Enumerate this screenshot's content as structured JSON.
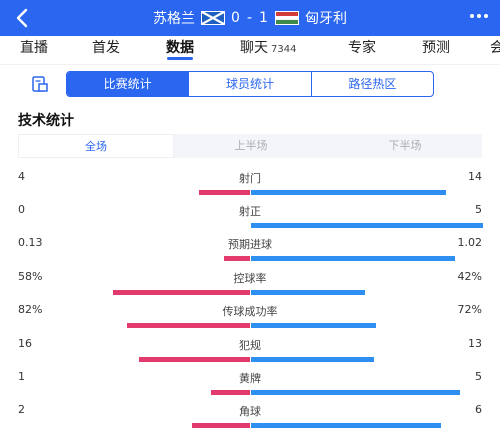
{
  "header": {
    "home_team": "苏格兰",
    "away_team": "匈牙利",
    "home_score": "0",
    "separator": "-",
    "away_score": "1",
    "back_icon": "chevron-left-icon",
    "more_icon": "more-dots-icon",
    "colors": {
      "bar": "#2b66f0"
    }
  },
  "tabs": [
    {
      "label": "直播",
      "sub": "",
      "active": false
    },
    {
      "label": "首发",
      "sub": "",
      "active": false
    },
    {
      "label": "数据",
      "sub": "",
      "active": true
    },
    {
      "label": "聊天",
      "sub": "7344",
      "active": false
    },
    {
      "label": "专家",
      "sub": "",
      "active": false
    },
    {
      "label": "预测",
      "sub": "",
      "active": false
    },
    {
      "label": "会",
      "sub": "",
      "active": false
    }
  ],
  "subtabs": {
    "icon": "document-icon",
    "items": [
      {
        "label": "比赛统计",
        "active": true
      },
      {
        "label": "球员统计",
        "active": false
      },
      {
        "label": "路径热区",
        "active": false
      }
    ]
  },
  "section_title": "技术统计",
  "period_tabs": [
    {
      "label": "全场",
      "active": true
    },
    {
      "label": "上半场",
      "active": false
    },
    {
      "label": "下半场",
      "active": false
    }
  ],
  "stats": [
    {
      "name": "射门",
      "home": "4",
      "away": "14",
      "home_frac": 0.22,
      "away_frac": 0.84
    },
    {
      "name": "射正",
      "home": "0",
      "away": "5",
      "home_frac": 0.0,
      "away_frac": 1.0
    },
    {
      "name": "预期进球",
      "home": "0.13",
      "away": "1.02",
      "home_frac": 0.11,
      "away_frac": 0.88
    },
    {
      "name": "控球率",
      "home": "58%",
      "away": "42%",
      "home_frac": 0.59,
      "away_frac": 0.49
    },
    {
      "name": "传球成功率",
      "home": "82%",
      "away": "72%",
      "home_frac": 0.53,
      "away_frac": 0.54
    },
    {
      "name": "犯规",
      "home": "16",
      "away": "13",
      "home_frac": 0.48,
      "away_frac": 0.53
    },
    {
      "name": "黄牌",
      "home": "1",
      "away": "5",
      "home_frac": 0.17,
      "away_frac": 0.9
    },
    {
      "name": "角球",
      "home": "2",
      "away": "6",
      "home_frac": 0.25,
      "away_frac": 0.82
    }
  ],
  "colors": {
    "home": "#e33a6e",
    "away": "#2f8ff0",
    "accent": "#2b66f0"
  }
}
